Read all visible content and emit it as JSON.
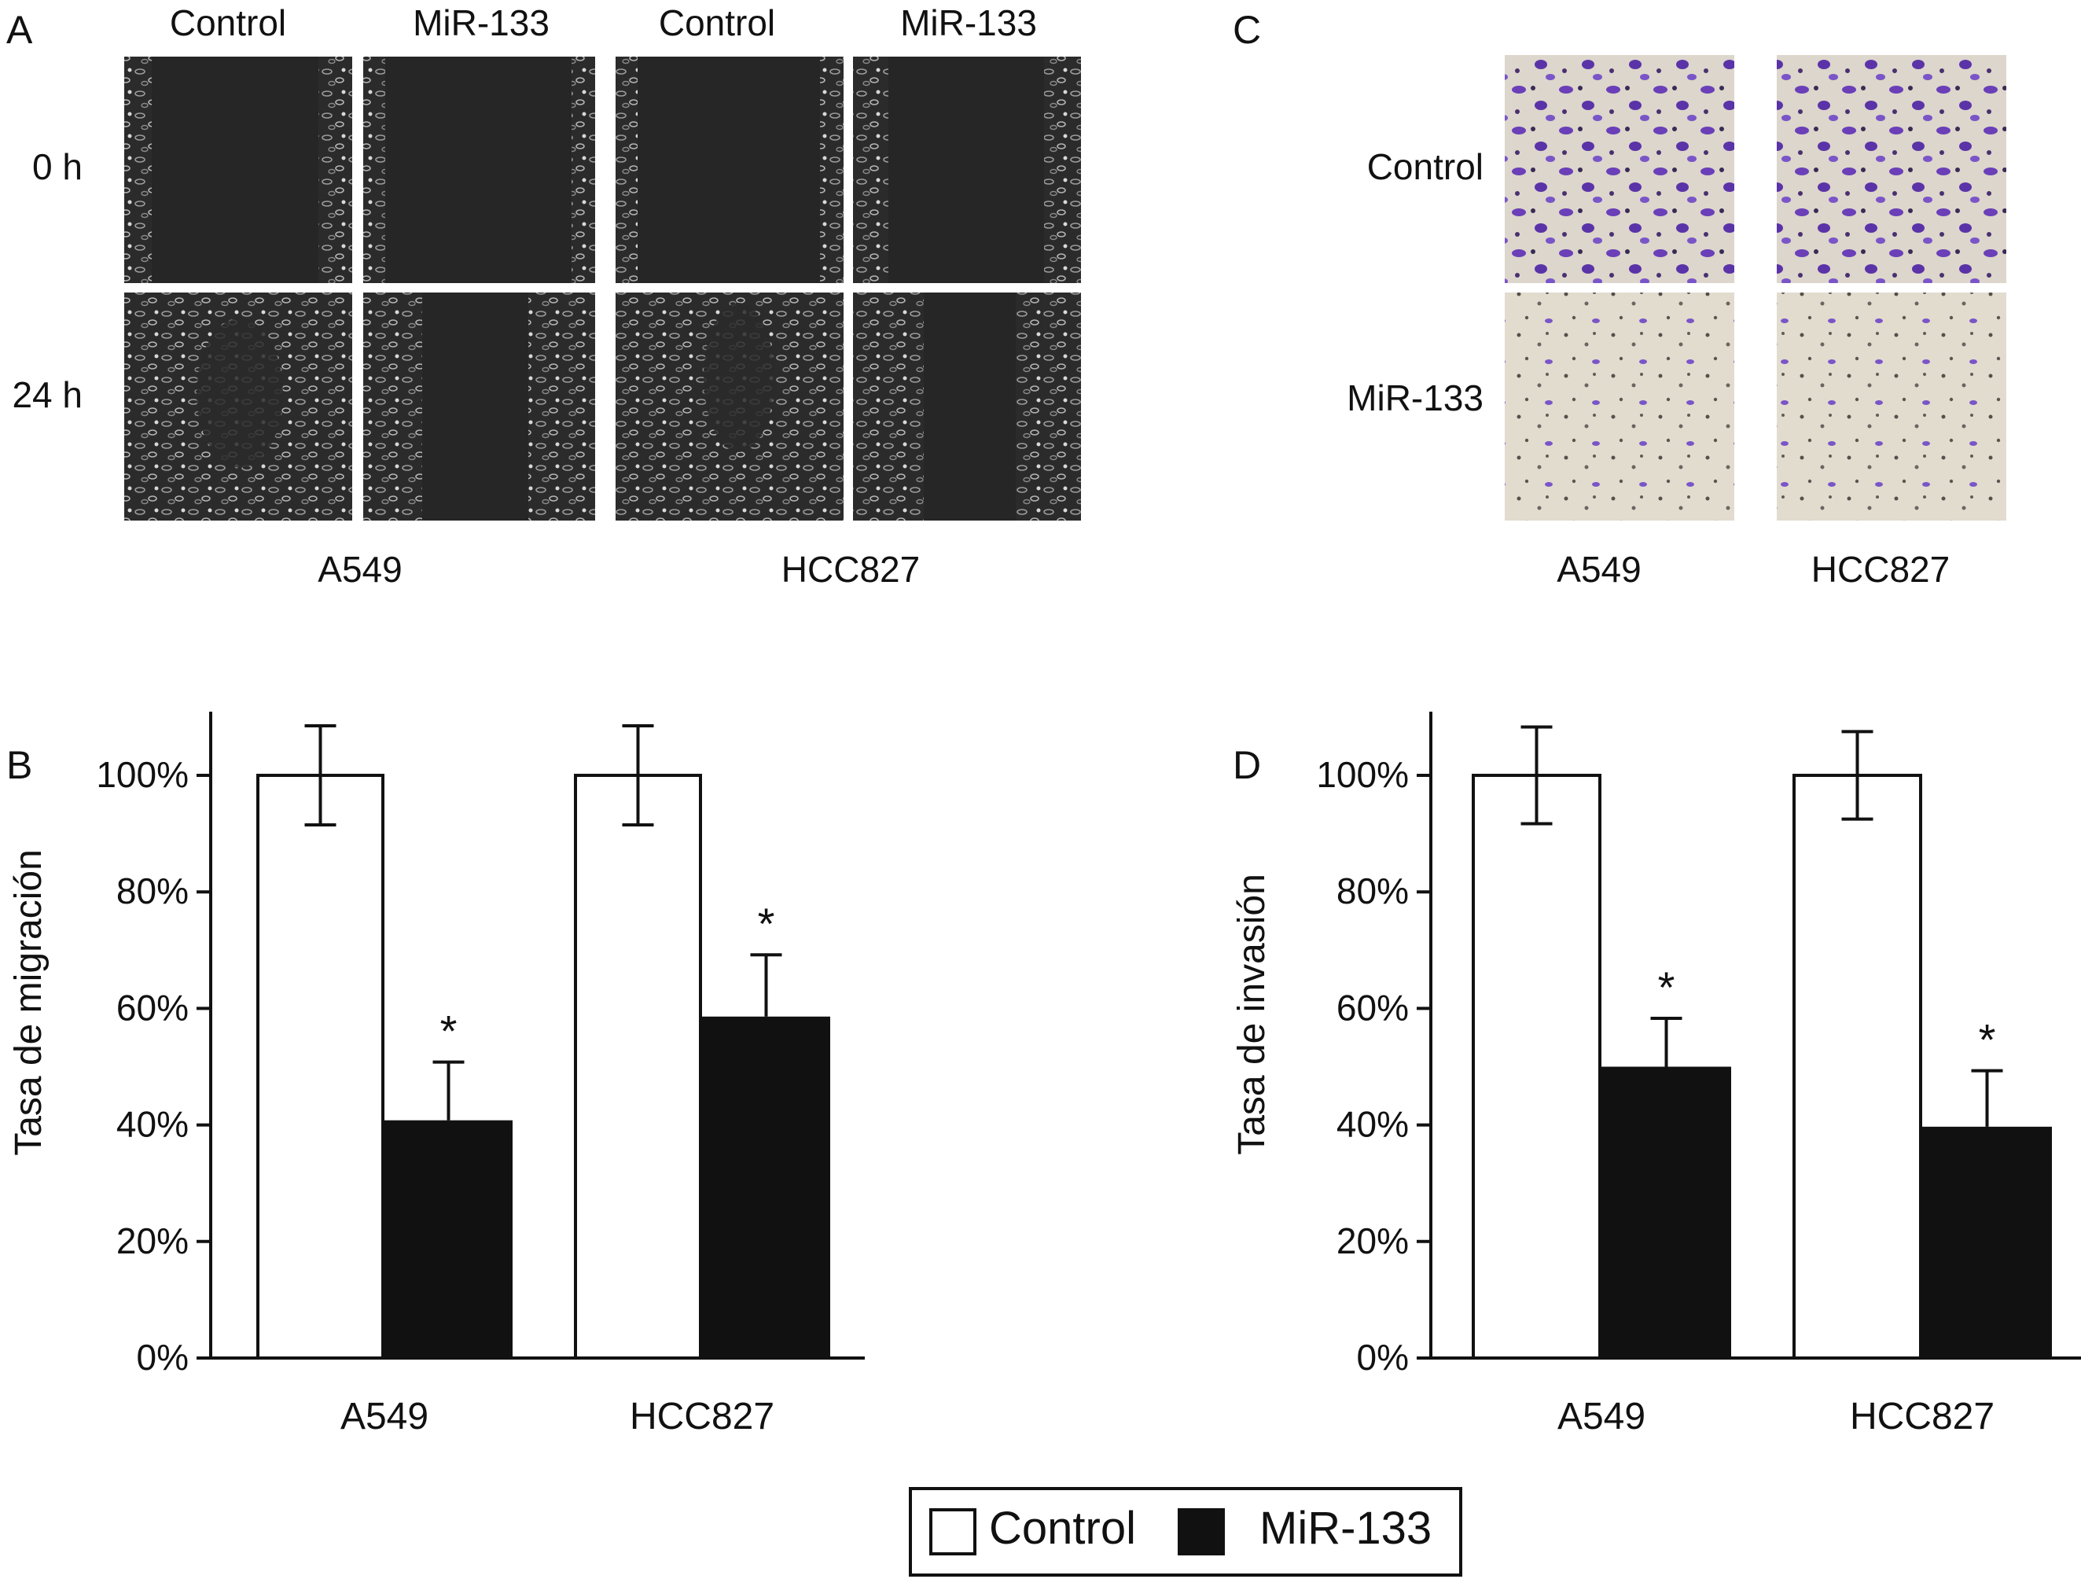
{
  "panels": {
    "A": {
      "letter": "A",
      "columns": [
        "Control",
        "MiR-133",
        "Control",
        "MiR-133"
      ],
      "rows": [
        "0 h",
        "24 h"
      ],
      "groups": [
        "A549",
        "HCC827"
      ]
    },
    "C": {
      "letter": "C",
      "rows": [
        "Control",
        "MiR-133"
      ],
      "groups": [
        "A549",
        "HCC827"
      ]
    },
    "B": {
      "letter": "B"
    },
    "D": {
      "letter": "D"
    }
  },
  "legend": {
    "control": "Control",
    "mir": "MiR-133"
  },
  "colors": {
    "control_fill": "#ffffff",
    "mir_fill": "#111111",
    "axis": "#111111",
    "micro_bg": "#262626",
    "stain": "#6a3fb8"
  },
  "chart_data": [
    {
      "type": "bar",
      "panel": "B",
      "title": "",
      "xlabel": "",
      "ylabel": "Tasa de migración",
      "categories": [
        "A549",
        "HCC827"
      ],
      "ylim": [
        0,
        100
      ],
      "yticks": [
        "0%",
        "20%",
        "40%",
        "60%",
        "80%",
        "100%"
      ],
      "series": [
        {
          "name": "Control",
          "values": [
            100,
            100
          ],
          "errors": [
            8.5,
            8.5
          ],
          "annotations": [
            "",
            ""
          ]
        },
        {
          "name": "MiR-133",
          "values": [
            40.8,
            58.6
          ],
          "errors": [
            10,
            10.6
          ],
          "annotations": [
            "*",
            "*"
          ]
        }
      ]
    },
    {
      "type": "bar",
      "panel": "D",
      "title": "",
      "xlabel": "",
      "ylabel": "Tasa de invasión",
      "categories": [
        "A549",
        "HCC827"
      ],
      "ylim": [
        0,
        100
      ],
      "yticks": [
        "0%",
        "20%",
        "40%",
        "60%",
        "80%",
        "100%"
      ],
      "series": [
        {
          "name": "Control",
          "values": [
            100,
            100
          ],
          "errors": [
            8.3,
            7.5
          ],
          "annotations": [
            "",
            ""
          ]
        },
        {
          "name": "MiR-133",
          "values": [
            50,
            39.7
          ],
          "errors": [
            8.3,
            9.6
          ],
          "annotations": [
            "*",
            "*"
          ]
        }
      ]
    }
  ]
}
